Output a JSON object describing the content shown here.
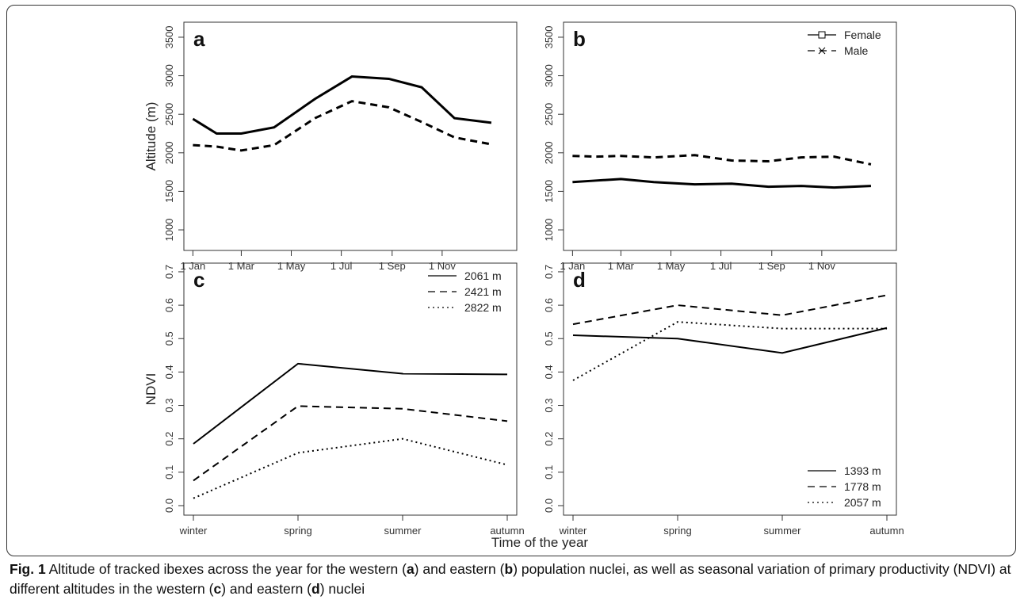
{
  "chart_data": [
    {
      "type": "line",
      "panel": "a",
      "ylabel": "Altitude (m)",
      "x": [
        1,
        30,
        60,
        100,
        150,
        195,
        240,
        280,
        320,
        365
      ],
      "series": [
        {
          "color": "#000000",
          "dash": "solid",
          "values": [
            2440,
            2250,
            2250,
            2330,
            2700,
            2990,
            2960,
            2850,
            2450,
            2390
          ]
        },
        {
          "color": "#000000",
          "dash": "dashed",
          "values": [
            2100,
            2080,
            2030,
            2100,
            2450,
            2670,
            2590,
            2400,
            2200,
            2110
          ]
        }
      ],
      "xlim": [
        -10,
        396
      ],
      "xticks": [
        {
          "value": 1,
          "label": "1 Jan"
        },
        {
          "value": 60,
          "label": "1 Mar"
        },
        {
          "value": 121,
          "label": "1 May"
        },
        {
          "value": 182,
          "label": "1 Jul"
        },
        {
          "value": 244,
          "label": "1 Sep"
        },
        {
          "value": 305,
          "label": "1 Nov"
        }
      ],
      "ylim": [
        733,
        3695
      ],
      "yticks": [
        1000,
        1500,
        2000,
        2500,
        3000,
        3500
      ]
    },
    {
      "type": "line",
      "panel": "b",
      "legend": "top-right",
      "x": [
        1,
        30,
        60,
        100,
        150,
        195,
        240,
        280,
        320,
        365
      ],
      "series": [
        {
          "name": "Female",
          "color": "#000000",
          "dash": "solid",
          "marker": "square",
          "values": [
            1620,
            1640,
            1660,
            1620,
            1590,
            1600,
            1560,
            1570,
            1550,
            1570
          ]
        },
        {
          "name": "Male",
          "color": "#000000",
          "dash": "dashed",
          "marker": "x",
          "values": [
            1960,
            1950,
            1960,
            1940,
            1970,
            1900,
            1890,
            1940,
            1950,
            1850
          ]
        }
      ],
      "xlim": [
        -10,
        396
      ],
      "xticks": [
        {
          "value": 1,
          "label": "1 Jan"
        },
        {
          "value": 60,
          "label": "1 Mar"
        },
        {
          "value": 121,
          "label": "1 May"
        },
        {
          "value": 182,
          "label": "1 Jul"
        },
        {
          "value": 244,
          "label": "1 Sep"
        },
        {
          "value": 305,
          "label": "1 Nov"
        }
      ],
      "ylim": [
        733,
        3695
      ],
      "yticks": [
        1000,
        1500,
        2000,
        2500,
        3000,
        3500
      ]
    },
    {
      "type": "line",
      "panel": "c",
      "ylabel": "NDVI",
      "legend": "top-right",
      "categories": [
        "winter",
        "spring",
        "summer",
        "autumn"
      ],
      "series": [
        {
          "name": "2061 m",
          "color": "#000000",
          "dash": "solid",
          "values": [
            0.185,
            0.425,
            0.395,
            0.393
          ]
        },
        {
          "name": "2421 m",
          "color": "#000000",
          "dash": "dashed",
          "values": [
            0.075,
            0.298,
            0.29,
            0.253
          ]
        },
        {
          "name": "2822 m",
          "color": "#000000",
          "dash": "dotted",
          "values": [
            0.022,
            0.158,
            0.2,
            0.122
          ]
        }
      ],
      "ylim": [
        -0.0285,
        0.726
      ],
      "yticks": [
        {
          "value": 0,
          "label": "0.0"
        },
        0.1,
        0.2,
        0.3,
        0.4,
        0.5,
        0.6,
        0.7
      ]
    },
    {
      "type": "line",
      "panel": "d",
      "legend": "bottom-right",
      "categories": [
        "winter",
        "spring",
        "summer",
        "autumn"
      ],
      "series": [
        {
          "name": "1393 m",
          "color": "#000000",
          "dash": "solid",
          "values": [
            0.51,
            0.5,
            0.457,
            0.532
          ]
        },
        {
          "name": "1778 m",
          "color": "#000000",
          "dash": "dashed",
          "values": [
            0.543,
            0.6,
            0.57,
            0.63
          ]
        },
        {
          "name": "2057 m",
          "color": "#000000",
          "dash": "dotted",
          "values": [
            0.375,
            0.55,
            0.53,
            0.53
          ]
        }
      ],
      "ylim": [
        -0.0285,
        0.726
      ],
      "yticks": [
        {
          "value": 0,
          "label": "0.0"
        },
        0.1,
        0.2,
        0.3,
        0.4,
        0.5,
        0.6,
        0.7
      ]
    }
  ],
  "shared_xlabel": "Time of the year",
  "caption": [
    "Fig. 1",
    " Altitude of tracked ibexes across the year for the western (",
    "a",
    ") and eastern (",
    "b",
    ") population nuclei, as well as seasonal variation of primary productivity (NDVI) at different altitudes in the western (",
    "c",
    ") and eastern (",
    "d",
    ") nuclei"
  ]
}
